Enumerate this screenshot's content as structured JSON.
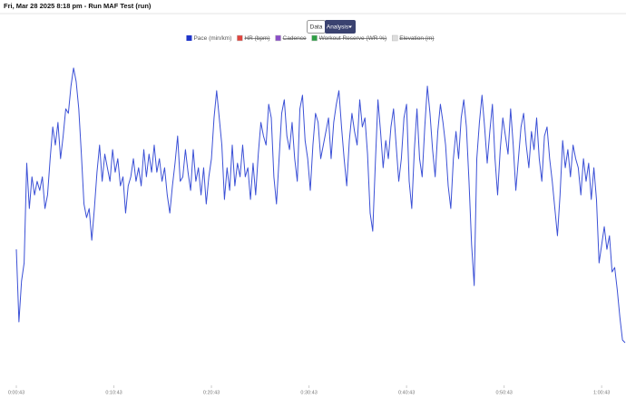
{
  "header": {
    "title": "Fri, Mar 28 2025 8:18 pm - Run MAF Test (run)"
  },
  "buttons": {
    "data": "Data",
    "analysis": "Analysis"
  },
  "chart_data": {
    "type": "line",
    "legend": [
      {
        "name": "Pace (min/km)",
        "color": "#1f35c9",
        "visible": true
      },
      {
        "name": "HR (bpm)",
        "color": "#e0443e",
        "visible": false
      },
      {
        "name": "Cadence",
        "color": "#8a4fc7",
        "visible": false
      },
      {
        "name": "Workout Reserve (WR %)",
        "color": "#2e9e44",
        "visible": false
      },
      {
        "name": "Elevation (m)",
        "color": "#dddddd",
        "visible": false
      }
    ],
    "x": [
      43,
      59,
      75,
      91,
      107,
      123,
      139,
      155,
      171,
      187,
      203,
      219,
      235,
      251,
      267,
      283,
      299,
      315,
      331,
      347,
      363,
      379,
      395,
      411,
      427,
      443,
      459,
      475,
      491,
      507,
      523,
      539,
      555,
      571,
      587,
      603,
      619,
      635,
      651,
      667,
      683,
      699,
      715,
      731,
      747,
      763,
      779,
      795,
      811,
      827,
      843,
      859,
      875,
      891,
      907,
      923,
      939,
      955,
      971,
      987,
      1003,
      1019,
      1035,
      1051,
      1067,
      1083,
      1099,
      1115,
      1131,
      1147,
      1163,
      1179,
      1195,
      1211,
      1227,
      1243,
      1259,
      1275,
      1291,
      1307,
      1323,
      1339,
      1355,
      1371,
      1387,
      1403,
      1419,
      1435,
      1451,
      1467,
      1483,
      1499,
      1515,
      1531,
      1547,
      1563,
      1579,
      1595,
      1611,
      1627,
      1643,
      1659,
      1675,
      1691,
      1707,
      1723,
      1739,
      1755,
      1771,
      1787,
      1803,
      1819,
      1835,
      1851,
      1867,
      1883,
      1899,
      1915,
      1931,
      1947,
      1963,
      1979,
      1995,
      2011,
      2027,
      2043,
      2059,
      2075,
      2091,
      2107,
      2123,
      2139,
      2155,
      2171,
      2187,
      2203,
      2219,
      2235,
      2251,
      2267,
      2283,
      2299,
      2315,
      2331,
      2347,
      2363,
      2379,
      2395,
      2411,
      2427,
      2443,
      2459,
      2475,
      2491,
      2507,
      2523,
      2539,
      2555,
      2571,
      2587,
      2603,
      2619,
      2635,
      2651,
      2667,
      2683,
      2699,
      2715,
      2731,
      2747,
      2763,
      2779,
      2795,
      2811,
      2827,
      2843,
      2859,
      2875,
      2891,
      2907,
      2923,
      2939,
      2955,
      2971,
      2987,
      3003,
      3019,
      3035,
      3051,
      3067,
      3083,
      3099,
      3115,
      3131,
      3147,
      3163,
      3179,
      3195,
      3211,
      3227,
      3243,
      3259,
      3275,
      3291,
      3307,
      3323,
      3339,
      3355,
      3371,
      3387,
      3403,
      3419,
      3435,
      3451,
      3467,
      3483,
      3499,
      3515,
      3531,
      3547,
      3563,
      3579,
      3595,
      3611,
      3627,
      3643,
      3659,
      3675,
      3691,
      3707,
      3723,
      3739,
      3755,
      3771,
      3787
    ],
    "series": [
      {
        "name": "Pace (min/km)",
        "color": "#3b50d6",
        "values": [
          145,
          65,
          110,
          130,
          240,
          190,
          225,
          205,
          220,
          210,
          225,
          190,
          205,
          245,
          280,
          260,
          285,
          245,
          270,
          300,
          295,
          325,
          345,
          330,
          300,
          250,
          195,
          180,
          190,
          155,
          190,
          230,
          260,
          220,
          250,
          235,
          220,
          255,
          230,
          245,
          215,
          225,
          185,
          215,
          225,
          245,
          220,
          235,
          215,
          255,
          225,
          250,
          230,
          260,
          230,
          245,
          220,
          235,
          205,
          185,
          215,
          240,
          270,
          220,
          225,
          255,
          230,
          210,
          255,
          220,
          235,
          205,
          235,
          195,
          225,
          245,
          290,
          320,
          290,
          260,
          200,
          235,
          210,
          260,
          215,
          240,
          225,
          260,
          225,
          235,
          200,
          240,
          205,
          250,
          285,
          270,
          260,
          305,
          290,
          225,
          195,
          245,
          295,
          310,
          270,
          255,
          285,
          245,
          220,
          300,
          315,
          265,
          245,
          210,
          260,
          295,
          285,
          245,
          260,
          275,
          290,
          245,
          285,
          305,
          320,
          280,
          245,
          215,
          265,
          295,
          275,
          260,
          310,
          280,
          290,
          250,
          185,
          165,
          240,
          310,
          275,
          235,
          265,
          245,
          280,
          300,
          260,
          220,
          245,
          290,
          305,
          220,
          190,
          255,
          300,
          245,
          225,
          280,
          325,
          295,
          255,
          225,
          275,
          305,
          285,
          260,
          215,
          190,
          245,
          275,
          245,
          290,
          310,
          280,
          220,
          150,
          105,
          245,
          285,
          315,
          280,
          240,
          275,
          305,
          245,
          205,
          255,
          290,
          270,
          250,
          300,
          260,
          210,
          245,
          280,
          295,
          260,
          235,
          275,
          255,
          290,
          245,
          220,
          270,
          280,
          245,
          220,
          190,
          160,
          205,
          265,
          235,
          255,
          225,
          260,
          245,
          235,
          205,
          245,
          220,
          240,
          200,
          235,
          200,
          130,
          150,
          170,
          145,
          160,
          120,
          125,
          100,
          70,
          45,
          42
        ]
      }
    ],
    "xlim": [
      43,
      3787
    ],
    "ylim": [
      0,
      360
    ],
    "xticks": [
      {
        "value": 43,
        "label": "0:00:43"
      },
      {
        "value": 643,
        "label": "0:10:43"
      },
      {
        "value": 1243,
        "label": "0:20:43"
      },
      {
        "value": 1843,
        "label": "0:30:43"
      },
      {
        "value": 2443,
        "label": "0:40:43"
      },
      {
        "value": 3043,
        "label": "0:50:43"
      },
      {
        "value": 3643,
        "label": "1:00:43"
      }
    ],
    "grid": false
  }
}
